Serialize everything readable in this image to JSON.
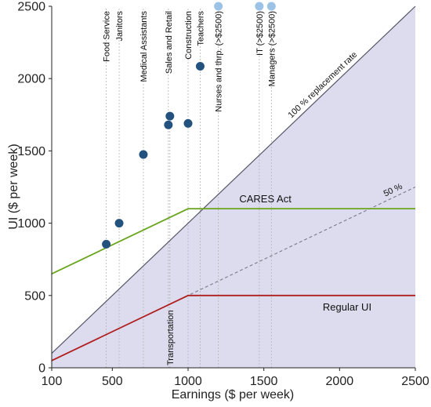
{
  "chart_data": {
    "type": "scatter",
    "xlabel": "Earnings ($ per week)",
    "ylabel": "UI ($ per week)",
    "xlim": [
      100,
      2500
    ],
    "ylim": [
      0,
      2500
    ],
    "x_ticks": [
      100,
      500,
      1000,
      1500,
      2000,
      2500
    ],
    "y_ticks": [
      0,
      500,
      1000,
      1500,
      2000,
      2500
    ],
    "grid": false,
    "occupations": [
      {
        "label": "Food Service",
        "x": 460,
        "y": 855,
        "style": "dark"
      },
      {
        "label": "Janitors",
        "x": 545,
        "y": 1000,
        "style": "dark"
      },
      {
        "label": "Medical Assistants",
        "x": 705,
        "y": 1475,
        "style": "dark"
      },
      {
        "label": "Sales and Retail",
        "x": 870,
        "y": 1680,
        "style": "dark"
      },
      {
        "label": "Construction",
        "x": 1000,
        "y": 1690,
        "style": "dark"
      },
      {
        "label": "Teachers",
        "x": 1080,
        "y": 2085,
        "style": "dark"
      },
      {
        "label": "Nurses and thrp. (>$2500)",
        "x": 1200,
        "y": 2500,
        "style": "light"
      },
      {
        "label": "IT (>$2500)",
        "x": 1470,
        "y": 2500,
        "style": "light"
      },
      {
        "label": "Managers (>$2500)",
        "x": 1550,
        "y": 2500,
        "style": "light"
      }
    ],
    "extra_markers": [
      {
        "label": "Transportation",
        "x": 880,
        "y": 1740,
        "style": "dark"
      }
    ],
    "lines": [
      {
        "name": "100 % replacement rate",
        "points": [
          [
            100,
            100
          ],
          [
            2500,
            2500
          ]
        ]
      },
      {
        "name": "50 %",
        "points": [
          [
            100,
            50
          ],
          [
            2500,
            1250
          ]
        ]
      },
      {
        "name": "CARES Act",
        "points": [
          [
            100,
            650
          ],
          [
            1000,
            1100
          ],
          [
            2500,
            1100
          ]
        ]
      },
      {
        "name": "Regular UI",
        "points": [
          [
            100,
            50
          ],
          [
            1000,
            500
          ],
          [
            2500,
            500
          ]
        ]
      }
    ],
    "colors": {
      "dark_marker": "#24527f",
      "light_marker": "#9cc3e6",
      "shade": "#dcdcee",
      "cares": "#6aa51e",
      "regular": "#b01e1e",
      "replacement": "#555565",
      "half": "#7a7a8a"
    }
  }
}
